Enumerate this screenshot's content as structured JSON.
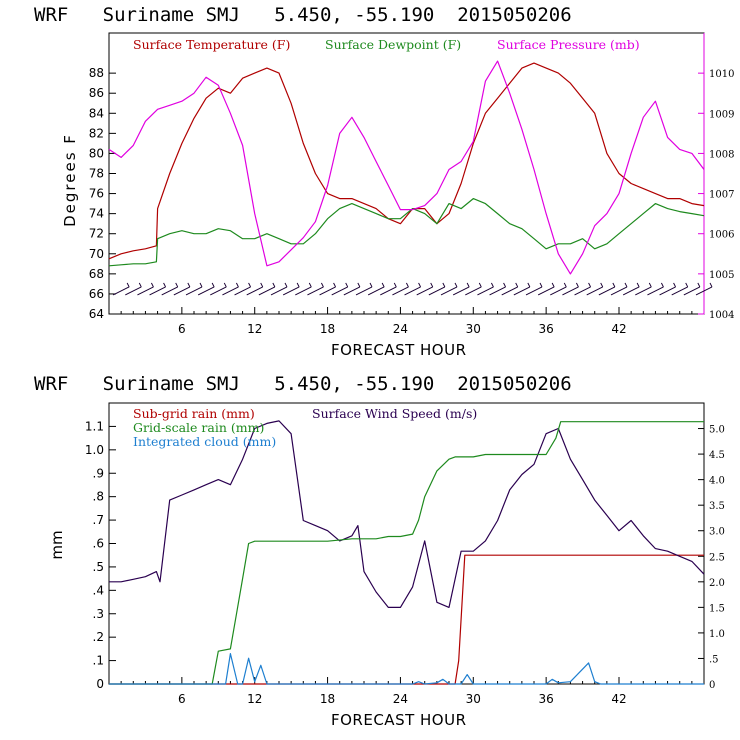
{
  "chart_data": [
    {
      "type": "line",
      "title": "WRF   Suriname SMJ   5.450, -55.190  2015050206",
      "xlabel": "FORECAST HOUR",
      "ylabel": "Degrees F",
      "xlim": [
        0,
        49
      ],
      "ylim": [
        64,
        92
      ],
      "ylim_right": [
        1004,
        1011
      ],
      "x_ticks": [
        6,
        12,
        18,
        24,
        30,
        36,
        42
      ],
      "y_ticks": [
        64,
        66,
        68,
        70,
        72,
        74,
        76,
        78,
        80,
        82,
        84,
        86,
        88
      ],
      "y_right_ticks": [
        1004,
        1005,
        1006,
        1007,
        1008,
        1009,
        1010
      ],
      "legend": [
        {
          "name": "Surface Temperature (F)",
          "color": "#b00000"
        },
        {
          "name": "Surface Dewpoint (F)",
          "color": "#1e8a1e"
        },
        {
          "name": "Surface Pressure (mb)",
          "color": "#e000e0"
        }
      ],
      "series": [
        {
          "name": "Surface Temperature (F)",
          "axis": "left",
          "color": "#b00000",
          "x": [
            0,
            1,
            2,
            3,
            3.9,
            4,
            5,
            6,
            7,
            8,
            9,
            10,
            11,
            12,
            13,
            14,
            15,
            16,
            17,
            18,
            19,
            20,
            21,
            22,
            23,
            24,
            25,
            26,
            27,
            28,
            29,
            30,
            31,
            32,
            33,
            34,
            35,
            36,
            37,
            38,
            39,
            40,
            41,
            42,
            43,
            44,
            45,
            46,
            47,
            48,
            49
          ],
          "y": [
            69.5,
            70,
            70.3,
            70.5,
            70.8,
            74.5,
            78,
            81,
            83.5,
            85.5,
            86.5,
            86,
            87.5,
            88,
            88.5,
            88,
            85,
            81,
            78,
            76,
            75.5,
            75.5,
            75,
            74.5,
            73.5,
            73,
            74.5,
            74.5,
            73,
            74,
            77,
            81,
            84,
            85.5,
            87,
            88.5,
            89,
            88.5,
            88,
            87,
            85.5,
            84,
            80,
            78,
            77,
            76.5,
            76,
            75.5,
            75.5,
            75,
            74.8
          ]
        },
        {
          "name": "Surface Dewpoint (F)",
          "axis": "left",
          "color": "#1e8a1e",
          "x": [
            0,
            1,
            2,
            3,
            3.9,
            4,
            5,
            6,
            7,
            8,
            9,
            10,
            11,
            12,
            13,
            14,
            15,
            16,
            17,
            18,
            19,
            20,
            21,
            22,
            23,
            24,
            25,
            26,
            27,
            28,
            29,
            30,
            31,
            32,
            33,
            34,
            35,
            36,
            37,
            38,
            39,
            40,
            41,
            42,
            43,
            44,
            45,
            46,
            47,
            48,
            49
          ],
          "y": [
            68.8,
            68.9,
            69,
            69,
            69.2,
            71.5,
            72,
            72.3,
            72,
            72,
            72.5,
            72.3,
            71.5,
            71.5,
            72,
            71.5,
            71,
            71,
            72,
            73.5,
            74.5,
            75,
            74.5,
            74,
            73.5,
            73.5,
            74.5,
            74,
            73,
            75,
            74.5,
            75.5,
            75,
            74,
            73,
            72.5,
            71.5,
            70.5,
            71,
            71,
            71.5,
            70.5,
            71,
            72,
            73,
            74,
            75,
            74.5,
            74.2,
            74,
            73.8
          ]
        },
        {
          "name": "Surface Pressure (mb)",
          "axis": "right",
          "color": "#e000e0",
          "x": [
            0,
            1,
            2,
            3,
            4,
            5,
            6,
            7,
            8,
            9,
            10,
            11,
            12,
            13,
            14,
            15,
            16,
            17,
            18,
            19,
            20,
            21,
            22,
            23,
            24,
            25,
            26,
            27,
            28,
            29,
            30,
            31,
            32,
            33,
            34,
            35,
            36,
            37,
            38,
            39,
            40,
            41,
            42,
            43,
            44,
            45,
            46,
            47,
            48,
            49
          ],
          "y": [
            1008.1,
            1007.9,
            1008.2,
            1008.8,
            1009.1,
            1009.2,
            1009.3,
            1009.5,
            1009.9,
            1009.7,
            1009.0,
            1008.2,
            1006.5,
            1005.2,
            1005.3,
            1005.6,
            1005.9,
            1006.3,
            1007.2,
            1008.5,
            1008.9,
            1008.4,
            1007.8,
            1007.2,
            1006.6,
            1006.6,
            1006.7,
            1007.0,
            1007.6,
            1007.8,
            1008.3,
            1009.8,
            1010.3,
            1009.5,
            1008.6,
            1007.6,
            1006.5,
            1005.5,
            1005.0,
            1005.5,
            1006.2,
            1006.5,
            1007.0,
            1008.0,
            1008.9,
            1009.3,
            1008.4,
            1008.1,
            1008.0,
            1007.6
          ]
        },
        {
          "name": "Wind barbs",
          "axis": "left",
          "color": "#1a0033",
          "style": "barbs",
          "x": [
            1,
            2,
            3,
            4,
            5,
            6,
            7,
            8,
            9,
            10,
            11,
            12,
            13,
            14,
            15,
            16,
            17,
            18,
            19,
            20,
            21,
            22,
            23,
            24,
            25,
            26,
            27,
            28,
            29,
            30,
            31,
            32,
            33,
            34,
            35,
            36,
            37,
            38,
            39,
            40,
            41,
            42,
            43,
            44,
            45,
            46,
            47,
            48,
            49
          ],
          "y": [
            66.3,
            66.3,
            66.3,
            66.3,
            66.3,
            66.3,
            66.3,
            66.3,
            66.3,
            66.3,
            66.3,
            66.3,
            66.3,
            66.3,
            66.3,
            66.3,
            66.3,
            66.3,
            66.3,
            66.3,
            66.3,
            66.3,
            66.3,
            66.3,
            66.3,
            66.3,
            66.3,
            66.3,
            66.3,
            66.3,
            66.3,
            66.3,
            66.3,
            66.3,
            66.3,
            66.3,
            66.3,
            66.3,
            66.3,
            66.3,
            66.3,
            66.3,
            66.3,
            66.3,
            66.3,
            66.3,
            66.3,
            66.3,
            66.3
          ]
        }
      ]
    },
    {
      "type": "line",
      "title": "WRF   Suriname SMJ   5.450, -55.190  2015050206",
      "xlabel": "FORECAST HOUR",
      "ylabel": "mm",
      "xlim": [
        0,
        49
      ],
      "ylim": [
        0,
        1.2
      ],
      "ylim_right": [
        0,
        5.5
      ],
      "x_ticks": [
        6,
        12,
        18,
        24,
        30,
        36,
        42
      ],
      "y_ticks": [
        0,
        0.1,
        0.2,
        0.3,
        0.4,
        0.5,
        0.6,
        0.7,
        0.8,
        0.9,
        1.0,
        1.1
      ],
      "y_tick_labels": [
        "0",
        ".1",
        ".2",
        ".3",
        ".4",
        ".5",
        ".6",
        ".7",
        ".8",
        ".9",
        "1.0",
        "1.1"
      ],
      "y_right_ticks": [
        0,
        0.5,
        1.0,
        1.5,
        2.0,
        2.5,
        3.0,
        3.5,
        4.0,
        4.5,
        5.0
      ],
      "y_right_tick_labels": [
        "0",
        ".5",
        "1.0",
        "1.5",
        "2.0",
        "2.5",
        "3.0",
        "3.5",
        "4.0",
        "4.5",
        "5.0"
      ],
      "legend": [
        {
          "name": "Sub-grid rain (mm)",
          "color": "#b00000"
        },
        {
          "name": "Surface Wind Speed (m/s)",
          "color": "#2a0050"
        },
        {
          "name": "Grid-scale rain (mm)",
          "color": "#1e8a1e"
        },
        {
          "name": "Integrated cloud (mm)",
          "color": "#1e7fd0"
        }
      ],
      "series": [
        {
          "name": "Sub-grid rain (mm)",
          "axis": "left",
          "color": "#b00000",
          "x": [
            0,
            28.5,
            28.8,
            29.3,
            30,
            49
          ],
          "y": [
            0,
            0,
            0.1,
            0.55,
            0.55,
            0.55
          ]
        },
        {
          "name": "Surface Wind Speed (m/s)",
          "axis": "right",
          "color": "#2a0050",
          "x": [
            0,
            1,
            2,
            3,
            3.9,
            4.2,
            5,
            6,
            7,
            8,
            9,
            10,
            11,
            12,
            13,
            14,
            15,
            16,
            17,
            18,
            19,
            20,
            20.5,
            21,
            22,
            23,
            24,
            25,
            26,
            27,
            28,
            29,
            30,
            31,
            32,
            33,
            34,
            35,
            36,
            37,
            38,
            39,
            40,
            41,
            42,
            43,
            44,
            45,
            46,
            47,
            48,
            49
          ],
          "y": [
            2.0,
            2.0,
            2.05,
            2.1,
            2.2,
            2.0,
            3.6,
            3.7,
            3.8,
            3.9,
            4.0,
            3.9,
            4.4,
            5.0,
            5.1,
            5.15,
            4.9,
            3.2,
            3.1,
            3.0,
            2.8,
            2.9,
            3.1,
            2.2,
            1.8,
            1.5,
            1.5,
            1.9,
            2.8,
            1.6,
            1.5,
            2.6,
            2.6,
            2.8,
            3.2,
            3.8,
            4.1,
            4.3,
            4.9,
            5.0,
            4.4,
            4.0,
            3.6,
            3.3,
            3.0,
            3.2,
            2.9,
            2.65,
            2.6,
            2.5,
            2.4,
            2.15
          ]
        },
        {
          "name": "Grid-scale rain (mm)",
          "axis": "left",
          "color": "#1e8a1e",
          "x": [
            0,
            8.5,
            9,
            10,
            10.5,
            11,
            11.5,
            12,
            13,
            14,
            15,
            16,
            17,
            18,
            20,
            21,
            22,
            23,
            24,
            25,
            25.5,
            26,
            27,
            28,
            28.5,
            29,
            30,
            31,
            32,
            35,
            36,
            36.8,
            37.2,
            38,
            40,
            49
          ],
          "y": [
            0,
            0,
            0.14,
            0.15,
            0.3,
            0.45,
            0.6,
            0.61,
            0.61,
            0.61,
            0.61,
            0.61,
            0.61,
            0.61,
            0.62,
            0.62,
            0.62,
            0.63,
            0.63,
            0.64,
            0.7,
            0.8,
            0.91,
            0.96,
            0.97,
            0.97,
            0.97,
            0.98,
            0.98,
            0.98,
            0.98,
            1.05,
            1.12,
            1.12,
            1.12,
            1.12
          ]
        },
        {
          "name": "Integrated cloud (mm)",
          "axis": "left",
          "color": "#1e7fd0",
          "x": [
            0,
            8,
            9.6,
            10,
            10.6,
            11,
            11.5,
            12,
            12.5,
            13,
            13.5,
            14,
            25,
            25.5,
            26,
            27,
            27.5,
            28,
            29,
            29.5,
            30,
            34,
            36,
            36.5,
            37,
            38,
            39.5,
            40,
            40.5,
            42,
            49
          ],
          "y": [
            0,
            0,
            0,
            0.13,
            0,
            0,
            0.11,
            0.01,
            0.08,
            0,
            0,
            0,
            0,
            0.01,
            0,
            0.005,
            0.02,
            0,
            0,
            0.04,
            0,
            0,
            0,
            0.02,
            0.005,
            0.01,
            0.09,
            0.01,
            0,
            0,
            0
          ]
        }
      ]
    }
  ]
}
